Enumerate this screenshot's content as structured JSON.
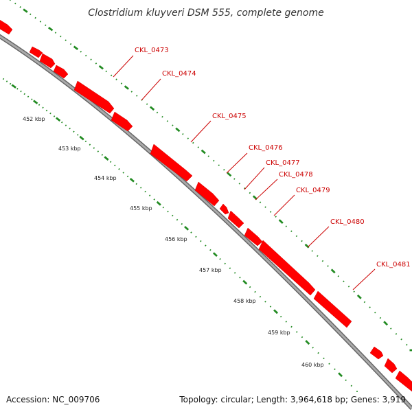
{
  "title": "Clostridium kluyveri DSM 555, complete genome",
  "footer": {
    "accession": "Accession: NC_009706",
    "summary": "Topology: circular; Length: 3,964,618 bp; Genes: 3,919"
  },
  "colors": {
    "gene": "#ff0000",
    "gene_outline": "#cc0000",
    "backbone": "#999999",
    "backbone_edge": "#555555",
    "ticks": "#228b22",
    "label": "#cc0000"
  },
  "genes": [
    {
      "label": "CKL_0473"
    },
    {
      "label": "CKL_0474"
    },
    {
      "label": "CKL_0475"
    },
    {
      "label": "CKL_0476"
    },
    {
      "label": "CKL_0477"
    },
    {
      "label": "CKL_0478"
    },
    {
      "label": "CKL_0479"
    },
    {
      "label": "CKL_0480"
    },
    {
      "label": "CKL_0481"
    }
  ],
  "scale": {
    "ticks": [
      "452 kbp",
      "453 kbp",
      "454 kbp",
      "455 kbp",
      "456 kbp",
      "457 kbp",
      "458 kbp",
      "459 kbp",
      "460 kbp"
    ]
  }
}
